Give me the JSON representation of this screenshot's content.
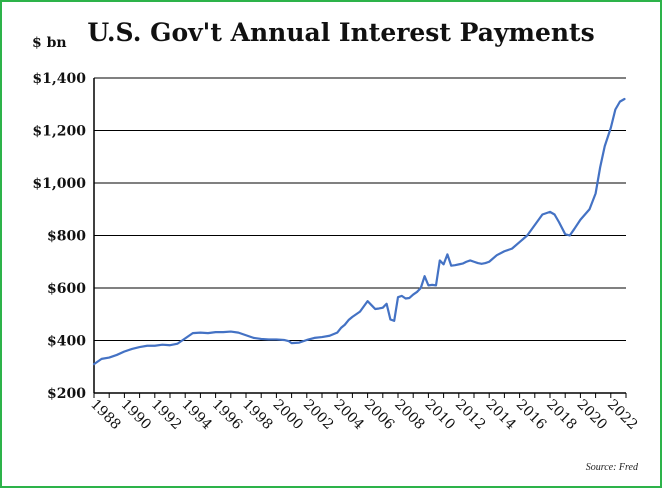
{
  "chart_data": {
    "type": "line",
    "title": "U.S. Gov't Annual Interest Payments",
    "ylabel": "$ bn",
    "xlabel": "",
    "source": "Source: Fred",
    "ylim": [
      200,
      1400
    ],
    "xlim": [
      1988,
      2023
    ],
    "grid": "horizontal",
    "y_ticks": [
      200,
      400,
      600,
      800,
      1000,
      1200,
      1400
    ],
    "y_tick_labels": [
      "$200",
      "$400",
      "$600",
      "$800",
      "$1,000",
      "$1,200",
      "$1,400"
    ],
    "x_ticks": [
      1988,
      1990,
      1992,
      1994,
      1996,
      1998,
      2000,
      2002,
      2004,
      2006,
      2008,
      2010,
      2012,
      2014,
      2016,
      2018,
      2020,
      2022
    ],
    "x_tick_labels": [
      "1988",
      "1990",
      "1992",
      "1994",
      "1996",
      "1998",
      "2000",
      "2002",
      "2004",
      "2006",
      "2008",
      "2010",
      "2012",
      "2014",
      "2016",
      "2018",
      "2020",
      "2022"
    ],
    "line_color": "#4472c4",
    "series": [
      {
        "name": "Annual Interest Payments",
        "x": [
          1988.0,
          1988.5,
          1989.0,
          1989.5,
          1990.0,
          1990.5,
          1991.0,
          1991.5,
          1992.0,
          1992.5,
          1993.0,
          1993.5,
          1994.0,
          1994.5,
          1995.0,
          1995.5,
          1996.0,
          1996.5,
          1997.0,
          1997.5,
          1998.0,
          1998.5,
          1999.0,
          1999.5,
          2000.0,
          2000.5,
          2000.8,
          2001.0,
          2001.5,
          2002.0,
          2002.5,
          2003.0,
          2003.5,
          2004.0,
          2004.25,
          2004.5,
          2004.75,
          2005.0,
          2005.25,
          2005.5,
          2005.75,
          2006.0,
          2006.25,
          2006.5,
          2006.75,
          2007.0,
          2007.25,
          2007.5,
          2007.75,
          2008.0,
          2008.25,
          2008.5,
          2008.75,
          2009.0,
          2009.25,
          2009.5,
          2009.75,
          2010.0,
          2010.25,
          2010.5,
          2010.75,
          2011.0,
          2011.25,
          2011.5,
          2011.75,
          2012.0,
          2012.25,
          2012.5,
          2012.75,
          2013.0,
          2013.25,
          2013.5,
          2013.75,
          2014.0,
          2014.5,
          2015.0,
          2015.5,
          2016.0,
          2016.5,
          2017.0,
          2017.5,
          2018.0,
          2018.3,
          2018.6,
          2019.0,
          2019.3,
          2019.6,
          2020.0,
          2020.3,
          2020.6,
          2021.0,
          2021.3,
          2021.6,
          2022.0,
          2022.3,
          2022.6,
          2022.9
        ],
        "values": [
          310,
          330,
          335,
          345,
          358,
          368,
          375,
          380,
          380,
          384,
          382,
          388,
          408,
          428,
          430,
          428,
          432,
          432,
          434,
          430,
          420,
          410,
          406,
          404,
          404,
          402,
          398,
          390,
          392,
          402,
          410,
          413,
          418,
          430,
          448,
          460,
          478,
          490,
          500,
          510,
          530,
          550,
          535,
          520,
          522,
          525,
          540,
          480,
          475,
          565,
          570,
          560,
          562,
          575,
          585,
          600,
          645,
          610,
          612,
          610,
          705,
          690,
          728,
          685,
          687,
          690,
          693,
          700,
          705,
          700,
          695,
          692,
          695,
          700,
          725,
          740,
          750,
          775,
          800,
          840,
          880,
          890,
          880,
          850,
          805,
          800,
          825,
          860,
          880,
          900,
          960,
          1060,
          1140,
          1210,
          1280,
          1310,
          1320
        ]
      }
    ]
  },
  "source_label": "Source: Fred"
}
